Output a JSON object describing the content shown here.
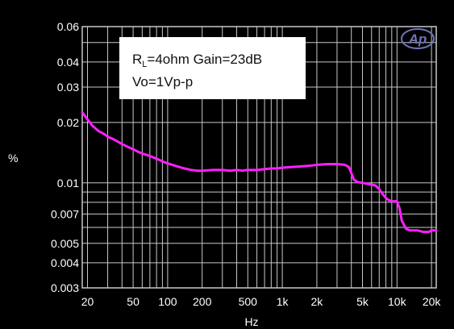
{
  "colors": {
    "background": "#000000",
    "plot_background": "#000000",
    "grid": "#c8c8c8",
    "trace": "#ff1fff",
    "text": "#ffffff",
    "annotation_box": "#ffffff",
    "annotation_text": "#111111",
    "logo": "#6f74b8"
  },
  "logo": {
    "icon": "audio-precision-logo-icon",
    "text": "Ap"
  },
  "chart_data": {
    "type": "line",
    "xscale": "log",
    "yscale": "log",
    "xlim": [
      18,
      22000
    ],
    "ylim": [
      0.003,
      0.06
    ],
    "xlabel": "Hz",
    "ylabel": "%",
    "grid": true,
    "x_ticks": [
      {
        "value": 20,
        "label": "20"
      },
      {
        "value": 50,
        "label": "50"
      },
      {
        "value": 100,
        "label": "100"
      },
      {
        "value": 200,
        "label": "200"
      },
      {
        "value": 500,
        "label": "500"
      },
      {
        "value": 1000,
        "label": "1k"
      },
      {
        "value": 2000,
        "label": "2k"
      },
      {
        "value": 5000,
        "label": "5k"
      },
      {
        "value": 10000,
        "label": "10k"
      },
      {
        "value": 20000,
        "label": "20k"
      }
    ],
    "y_ticks": [
      {
        "value": 0.003,
        "label": "0.003"
      },
      {
        "value": 0.004,
        "label": "0.004"
      },
      {
        "value": 0.005,
        "label": "0.005"
      },
      {
        "value": 0.007,
        "label": "0.007"
      },
      {
        "value": 0.01,
        "label": "0.01"
      },
      {
        "value": 0.02,
        "label": "0.02"
      },
      {
        "value": 0.03,
        "label": "0.03"
      },
      {
        "value": 0.04,
        "label": "0.04"
      },
      {
        "value": 0.06,
        "label": "0.06"
      }
    ],
    "annotation": {
      "line1_main": "R",
      "line1_sub": "L",
      "line1_rest": "=4ohm Gain=23dB",
      "line2": "Vo=1Vp-p"
    },
    "series": [
      {
        "x": [
          18,
          20,
          22,
          25,
          28,
          30,
          35,
          40,
          45,
          50,
          55,
          60,
          70,
          80,
          90,
          100,
          110,
          120,
          140,
          160,
          180,
          200,
          250,
          300,
          350,
          400,
          450,
          500,
          600,
          700,
          800,
          900,
          1000,
          1200,
          1500,
          1800,
          2000,
          2500,
          3000,
          3500,
          3800,
          4000,
          4200,
          4500,
          5000,
          5500,
          6000,
          6500,
          7000,
          7500,
          8000,
          8500,
          9000,
          9500,
          10000,
          10500,
          11000,
          12000,
          13000,
          15000,
          17000,
          19000,
          20000,
          22000
        ],
        "values": [
          0.0225,
          0.0207,
          0.0193,
          0.0181,
          0.0175,
          0.017,
          0.0163,
          0.0156,
          0.0151,
          0.0147,
          0.0143,
          0.014,
          0.0136,
          0.0132,
          0.0128,
          0.0125,
          0.0123,
          0.0121,
          0.0118,
          0.0116,
          0.0115,
          0.0115,
          0.0116,
          0.0116,
          0.0115,
          0.0116,
          0.0115,
          0.0116,
          0.0116,
          0.0117,
          0.0118,
          0.0118,
          0.0119,
          0.012,
          0.0121,
          0.0122,
          0.0123,
          0.0124,
          0.0124,
          0.0123,
          0.012,
          0.0112,
          0.0104,
          0.0101,
          0.01,
          0.0099,
          0.0098,
          0.0097,
          0.0093,
          0.0088,
          0.0084,
          0.0082,
          0.0081,
          0.0081,
          0.0081,
          0.0075,
          0.0065,
          0.0059,
          0.0058,
          0.0058,
          0.0057,
          0.0057,
          0.0058,
          0.0058
        ]
      }
    ]
  }
}
